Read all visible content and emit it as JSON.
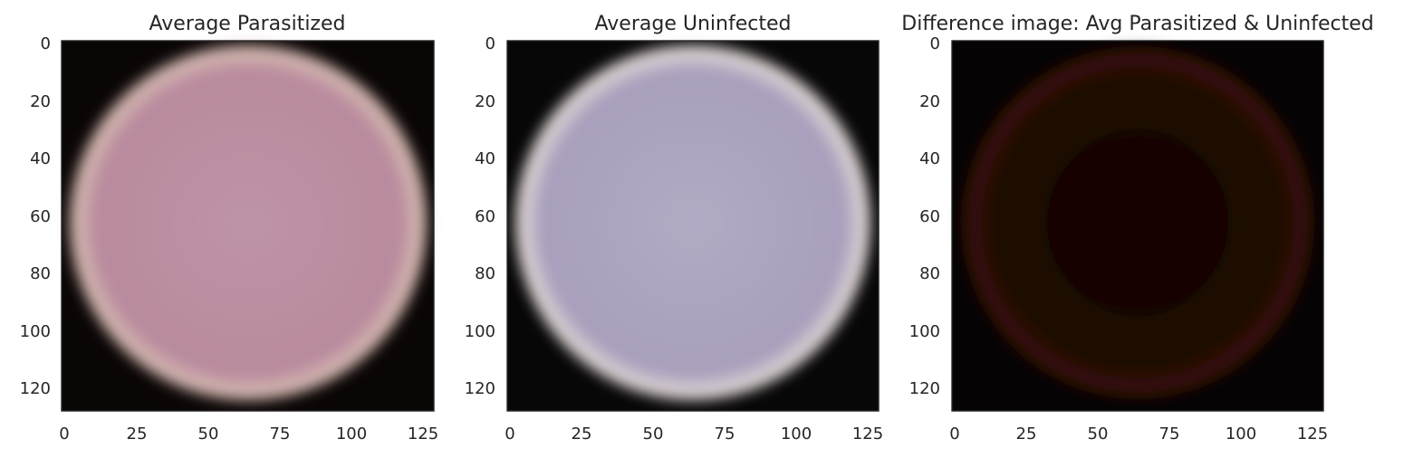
{
  "chart_data": [
    {
      "type": "image",
      "title": "Average Parasitized",
      "x_ticks": [
        "0",
        "25",
        "50",
        "75",
        "100",
        "125"
      ],
      "y_ticks": [
        "0",
        "20",
        "40",
        "60",
        "80",
        "100",
        "120"
      ],
      "xlim": [
        -0.5,
        129.5
      ],
      "ylim": [
        129.5,
        -0.5
      ],
      "image": {
        "width": 130,
        "height": 130,
        "background_color": "#0b0606",
        "cell_color": "#b98a9e",
        "cell_edge_color": "#d4b8b0",
        "grid": false
      }
    },
    {
      "type": "image",
      "title": "Average Uninfected",
      "x_ticks": [
        "0",
        "25",
        "50",
        "75",
        "100",
        "125"
      ],
      "y_ticks": [
        "0",
        "20",
        "40",
        "60",
        "80",
        "100",
        "120"
      ],
      "xlim": [
        -0.5,
        129.5
      ],
      "ylim": [
        129.5,
        -0.5
      ],
      "image": {
        "width": 130,
        "height": 130,
        "background_color": "#080707",
        "cell_color": "#a89fbc",
        "cell_edge_color": "#dcd4d4",
        "grid": false
      }
    },
    {
      "type": "image",
      "title": "Difference image: Avg Parasitized & Uninfected",
      "x_ticks": [
        "0",
        "25",
        "50",
        "75",
        "100",
        "125"
      ],
      "y_ticks": [
        "0",
        "20",
        "40",
        "60",
        "80",
        "100",
        "120"
      ],
      "xlim": [
        -0.5,
        129.5
      ],
      "ylim": [
        129.5,
        -0.5
      ],
      "image": {
        "width": 130,
        "height": 130,
        "background_color": "#050303",
        "cell_color": "#1a0603",
        "cell_edge_color": "#3a1208",
        "grid": false
      }
    }
  ]
}
